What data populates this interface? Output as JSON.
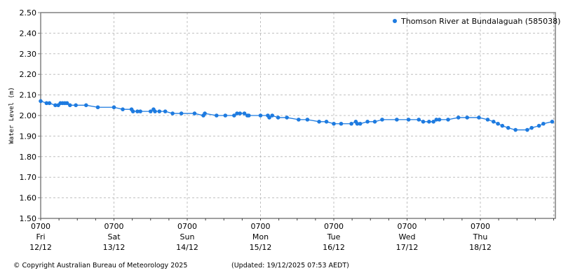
{
  "chart_data": {
    "type": "line",
    "title": "",
    "xlabel": "",
    "ylabel": "Water Level (m)",
    "ylim": [
      1.5,
      2.5
    ],
    "yticks": [
      "1.50",
      "1.60",
      "1.70",
      "1.80",
      "1.90",
      "2.00",
      "2.10",
      "2.20",
      "2.30",
      "2.40",
      "2.50"
    ],
    "xticks": [
      {
        "time": "0700",
        "day": "Fri",
        "date": "12/12"
      },
      {
        "time": "0700",
        "day": "Sat",
        "date": "13/12"
      },
      {
        "time": "0700",
        "day": "Sun",
        "date": "14/12"
      },
      {
        "time": "0700",
        "day": "Mon",
        "date": "15/12"
      },
      {
        "time": "0700",
        "day": "Tue",
        "date": "16/12"
      },
      {
        "time": "0700",
        "day": "Wed",
        "date": "17/12"
      },
      {
        "time": "0700",
        "day": "Thu",
        "date": "18/12"
      }
    ],
    "grid": true,
    "legend_position": "top-right",
    "color": "#1e7be0",
    "series": [
      {
        "name": "Thomson River at Bundalaguah (585038)",
        "x_days": [
          0.0,
          0.08,
          0.12,
          0.2,
          0.24,
          0.27,
          0.3,
          0.33,
          0.36,
          0.4,
          0.48,
          0.62,
          0.78,
          1.0,
          1.12,
          1.24,
          1.26,
          1.32,
          1.36,
          1.5,
          1.54,
          1.56,
          1.62,
          1.7,
          1.8,
          1.92,
          2.1,
          2.22,
          2.24,
          2.4,
          2.52,
          2.64,
          2.68,
          2.72,
          2.78,
          2.82,
          2.84,
          3.0,
          3.1,
          3.12,
          3.16,
          3.24,
          3.36,
          3.52,
          3.64,
          3.8,
          3.9,
          4.0,
          4.1,
          4.24,
          4.3,
          4.32,
          4.36,
          4.46,
          4.56,
          4.66,
          4.86,
          5.02,
          5.16,
          5.22,
          5.3,
          5.36,
          5.4,
          5.44,
          5.56,
          5.7,
          5.82,
          5.98,
          6.1,
          6.18,
          6.24,
          6.3,
          6.38,
          6.48,
          6.64,
          6.7,
          6.8,
          6.86,
          6.98
        ],
        "values": [
          2.07,
          2.06,
          2.06,
          2.05,
          2.05,
          2.06,
          2.06,
          2.06,
          2.06,
          2.05,
          2.05,
          2.05,
          2.04,
          2.04,
          2.03,
          2.03,
          2.02,
          2.02,
          2.02,
          2.02,
          2.03,
          2.02,
          2.02,
          2.02,
          2.01,
          2.01,
          2.01,
          2.0,
          2.01,
          2.0,
          2.0,
          2.0,
          2.01,
          2.01,
          2.01,
          2.0,
          2.0,
          2.0,
          2.0,
          1.99,
          2.0,
          1.99,
          1.99,
          1.98,
          1.98,
          1.97,
          1.97,
          1.96,
          1.96,
          1.96,
          1.97,
          1.96,
          1.96,
          1.97,
          1.97,
          1.98,
          1.98,
          1.98,
          1.98,
          1.97,
          1.97,
          1.97,
          1.98,
          1.98,
          1.98,
          1.99,
          1.99,
          1.99,
          1.98,
          1.97,
          1.96,
          1.95,
          1.94,
          1.93,
          1.93,
          1.94,
          1.95,
          1.96,
          1.97
        ]
      }
    ]
  },
  "footer": {
    "copyright": "© Copyright Australian Bureau of Meteorology 2025",
    "updated": "(Updated: 19/12/2025 07:53 AEDT)"
  }
}
